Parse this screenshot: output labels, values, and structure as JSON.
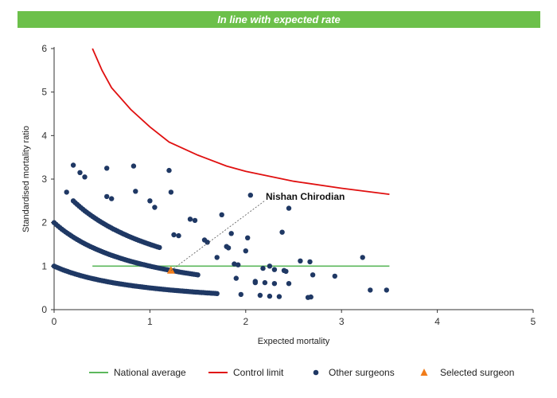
{
  "banner": {
    "text": "In line with expected rate"
  },
  "chart_data": {
    "type": "scatter",
    "title": "In line with expected rate",
    "xlabel": "Expected mortality",
    "ylabel": "Standardised mortality ratio",
    "xlim": [
      0,
      5
    ],
    "ylim": [
      0,
      6
    ],
    "x_ticks": [
      0,
      1,
      2,
      3,
      4,
      5
    ],
    "y_ticks": [
      0,
      1,
      2,
      3,
      4,
      5,
      6
    ],
    "grid": false,
    "legend_position": "bottom",
    "annotation": {
      "text": "Nishan Chirodian",
      "x": 1.22,
      "y": 0.9
    },
    "series": [
      {
        "name": "National average",
        "kind": "line",
        "color": "#5cb85c",
        "x": [
          0.4,
          3.5
        ],
        "y": [
          1,
          1
        ]
      },
      {
        "name": "Control limit",
        "kind": "line",
        "color": "#e01010",
        "x": [
          0.4,
          0.5,
          0.6,
          0.8,
          1.0,
          1.2,
          1.5,
          1.8,
          2.0,
          2.5,
          3.0,
          3.5
        ],
        "y": [
          6.0,
          5.5,
          5.1,
          4.6,
          4.2,
          3.85,
          3.55,
          3.3,
          3.18,
          2.95,
          2.79,
          2.65
        ]
      },
      {
        "name": "Other surgeons",
        "kind": "scatter",
        "color": "#1f3864",
        "curves": [
          {
            "k": 1,
            "x_start": 0.0,
            "x_end": 1.7,
            "step": 0.02
          },
          {
            "k": 2,
            "x_start": 0.0,
            "x_end": 1.5,
            "step": 0.02
          },
          {
            "k": 3,
            "x_start": 0.2,
            "x_end": 1.1,
            "step": 0.02
          }
        ],
        "x": [
          0.13,
          0.2,
          0.27,
          0.32,
          0.55,
          0.55,
          0.6,
          0.83,
          0.85,
          1.0,
          1.05,
          1.2,
          1.22,
          1.25,
          1.3,
          1.42,
          1.47,
          1.57,
          1.6,
          1.7,
          1.75,
          1.8,
          1.82,
          1.85,
          1.88,
          1.92,
          2.0,
          2.02,
          2.05,
          2.1,
          2.18,
          2.2,
          2.25,
          2.3,
          2.38,
          2.42,
          2.45,
          2.45,
          2.57,
          2.67,
          2.7,
          2.93,
          3.22,
          3.3,
          3.47,
          1.95,
          2.1,
          2.15,
          2.25,
          2.3,
          2.35,
          2.4,
          2.65,
          2.68,
          1.9
        ],
        "y": [
          2.7,
          3.32,
          3.15,
          3.05,
          3.25,
          2.6,
          2.55,
          3.3,
          2.72,
          2.5,
          2.35,
          3.2,
          2.7,
          1.72,
          1.7,
          2.08,
          2.05,
          1.6,
          1.55,
          1.2,
          2.18,
          1.45,
          1.42,
          1.75,
          1.05,
          1.03,
          1.35,
          1.65,
          2.63,
          0.65,
          0.95,
          0.62,
          1.0,
          0.92,
          1.78,
          0.88,
          0.6,
          2.33,
          1.12,
          1.1,
          0.8,
          0.77,
          1.2,
          0.45,
          0.45,
          0.35,
          0.62,
          0.33,
          0.31,
          0.6,
          0.3,
          0.9,
          0.28,
          0.29,
          0.72
        ]
      },
      {
        "name": "Selected surgeon",
        "kind": "marker",
        "color": "#f07c1a",
        "x": [
          1.22
        ],
        "y": [
          0.9
        ]
      }
    ]
  }
}
